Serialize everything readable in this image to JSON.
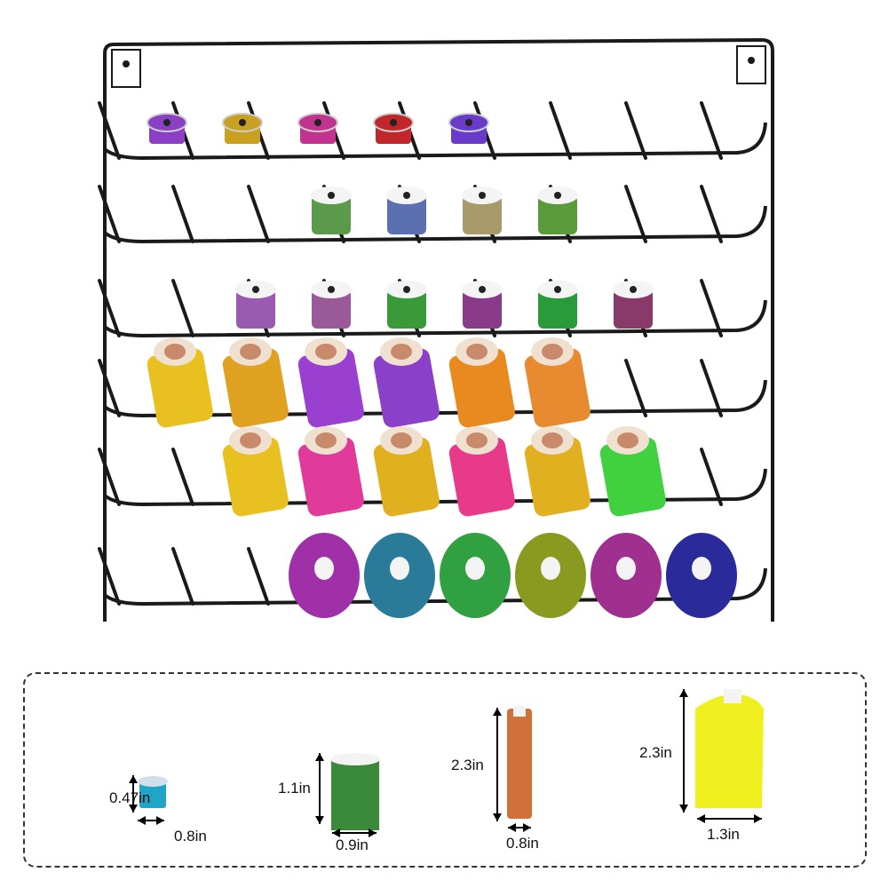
{
  "rack": {
    "frame_color": "#1a1a1a",
    "rows": [
      {
        "type": "bobbin",
        "spools": [
          "#8a3fc4",
          "#c9a020",
          "#c2338f",
          "#c0262a",
          "#6a3bc8"
        ]
      },
      {
        "type": "small",
        "offset": 2,
        "spools": [
          "#5a9a4a",
          "#5a70b0",
          "#a89a6a",
          "#5a9a3a"
        ]
      },
      {
        "type": "small",
        "offset": 1,
        "spools": [
          "#9a5ab0",
          "#9a5a9a",
          "#3a9a3a",
          "#8a3a8a",
          "#2a9a3a",
          "#8a3a6a"
        ]
      },
      {
        "type": "tall",
        "offset": 0,
        "spools": [
          "#e8c020",
          "#e0a020",
          "#9a40d0",
          "#8a40c8",
          "#e88a20",
          "#e88a30"
        ]
      },
      {
        "type": "tall",
        "offset": 1,
        "spools": [
          "#e8c020",
          "#e03a9a",
          "#e0b020",
          "#e83a8a",
          "#e0b020",
          "#40d040"
        ]
      },
      {
        "type": "big",
        "offset": 2,
        "spools": [
          "#a030a8",
          "#2a7a9a",
          "#30a040",
          "#8a9a20",
          "#a03090",
          "#2a2a9a"
        ]
      }
    ]
  },
  "dimensions": [
    {
      "name": "bobbin",
      "color": "#1ea5c8",
      "height": "0.47in",
      "width": "0.8in"
    },
    {
      "name": "small-spool",
      "color": "#3a8a3a",
      "height": "1.1in",
      "width": "0.9in"
    },
    {
      "name": "slim-spool",
      "color": "#d2703a",
      "height": "2.3in",
      "width": "0.8in"
    },
    {
      "name": "cone",
      "color": "#f0f020",
      "height": "2.3in",
      "width": "1.3in"
    }
  ]
}
